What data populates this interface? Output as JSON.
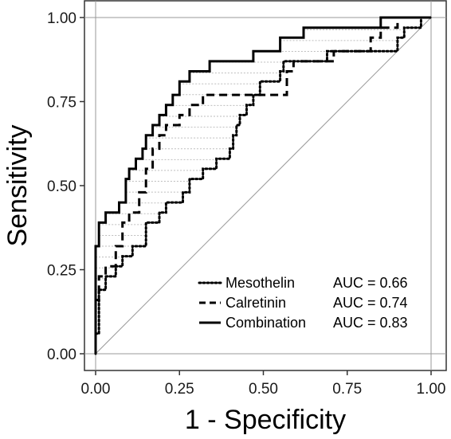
{
  "chart_data": {
    "type": "line",
    "title": "",
    "xlabel": "1 - Specificity",
    "ylabel": "Sensitivity",
    "xlim": [
      0,
      1
    ],
    "ylim": [
      0,
      1
    ],
    "x_ticks": [
      "0.00",
      "0.25",
      "0.50",
      "0.75",
      "1.00"
    ],
    "y_ticks": [
      "0.00",
      "0.25",
      "0.50",
      "0.75",
      "1.00"
    ],
    "x_tick_values": [
      0,
      0.25,
      0.5,
      0.75,
      1
    ],
    "y_tick_values": [
      0,
      0.25,
      0.5,
      0.75,
      1
    ],
    "reference_line": {
      "x": [
        0,
        1
      ],
      "y": [
        0,
        1
      ]
    },
    "legend_position": "bottom-right",
    "series": [
      {
        "name": "Mesothelin",
        "auc_label": "AUC = 0.66",
        "style": "dotted",
        "x": [
          0,
          0,
          0.01,
          0.01,
          0.03,
          0.03,
          0.06,
          0.06,
          0.08,
          0.08,
          0.11,
          0.11,
          0.15,
          0.15,
          0.19,
          0.19,
          0.21,
          0.21,
          0.26,
          0.26,
          0.28,
          0.28,
          0.32,
          0.32,
          0.36,
          0.36,
          0.4,
          0.4,
          0.41,
          0.41,
          0.42,
          0.42,
          0.43,
          0.43,
          0.45,
          0.45,
          0.47,
          0.47,
          0.49,
          0.49,
          0.55,
          0.55,
          0.56,
          0.56,
          0.69,
          0.69,
          0.7,
          0.7,
          0.9,
          0.9,
          0.92,
          0.92,
          0.94,
          0.94,
          0.97,
          0.97,
          1
        ],
        "y": [
          0,
          0.06,
          0.06,
          0.19,
          0.19,
          0.23,
          0.23,
          0.26,
          0.26,
          0.29,
          0.29,
          0.32,
          0.32,
          0.39,
          0.39,
          0.42,
          0.42,
          0.45,
          0.45,
          0.48,
          0.48,
          0.52,
          0.52,
          0.55,
          0.55,
          0.58,
          0.58,
          0.61,
          0.61,
          0.65,
          0.65,
          0.68,
          0.68,
          0.71,
          0.71,
          0.74,
          0.74,
          0.77,
          0.77,
          0.81,
          0.81,
          0.84,
          0.84,
          0.87,
          0.87,
          0.9,
          0.9,
          0.9,
          0.9,
          0.94,
          0.94,
          0.97,
          0.97,
          0.97,
          0.97,
          1,
          1
        ]
      },
      {
        "name": "Calretinin",
        "auc_label": "AUC = 0.74",
        "style": "dashed",
        "x": [
          0,
          0,
          0.01,
          0.01,
          0.03,
          0.03,
          0.06,
          0.06,
          0.08,
          0.08,
          0.1,
          0.1,
          0.13,
          0.13,
          0.15,
          0.15,
          0.17,
          0.17,
          0.19,
          0.19,
          0.21,
          0.21,
          0.25,
          0.25,
          0.28,
          0.28,
          0.32,
          0.32,
          0.45,
          0.45,
          0.57,
          0.57,
          0.59,
          0.59,
          0.71,
          0.71,
          0.74,
          0.74,
          0.82,
          0.82,
          0.85,
          0.85,
          0.87,
          0.87,
          0.9,
          0.9,
          1
        ],
        "y": [
          0,
          0.16,
          0.16,
          0.23,
          0.23,
          0.26,
          0.26,
          0.32,
          0.32,
          0.39,
          0.39,
          0.42,
          0.42,
          0.48,
          0.48,
          0.55,
          0.55,
          0.61,
          0.61,
          0.65,
          0.65,
          0.68,
          0.68,
          0.71,
          0.71,
          0.74,
          0.74,
          0.77,
          0.77,
          0.77,
          0.77,
          0.84,
          0.84,
          0.87,
          0.87,
          0.9,
          0.9,
          0.9,
          0.9,
          0.94,
          0.94,
          0.97,
          0.97,
          0.97,
          0.97,
          1,
          1
        ]
      },
      {
        "name": "Combination",
        "auc_label": "AUC = 0.83",
        "style": "solid",
        "x": [
          0,
          0,
          0.01,
          0.01,
          0.03,
          0.03,
          0.07,
          0.07,
          0.09,
          0.09,
          0.1,
          0.1,
          0.12,
          0.12,
          0.14,
          0.14,
          0.15,
          0.15,
          0.17,
          0.17,
          0.19,
          0.19,
          0.21,
          0.21,
          0.23,
          0.23,
          0.25,
          0.25,
          0.28,
          0.28,
          0.32,
          0.32,
          0.34,
          0.34,
          0.4,
          0.4,
          0.47,
          0.47,
          0.55,
          0.55,
          0.62,
          0.62,
          0.85,
          0.85,
          1
        ],
        "y": [
          0,
          0.32,
          0.32,
          0.39,
          0.39,
          0.42,
          0.42,
          0.45,
          0.45,
          0.52,
          0.52,
          0.55,
          0.55,
          0.58,
          0.58,
          0.61,
          0.61,
          0.65,
          0.65,
          0.68,
          0.68,
          0.71,
          0.71,
          0.74,
          0.74,
          0.77,
          0.77,
          0.81,
          0.81,
          0.84,
          0.84,
          0.84,
          0.84,
          0.87,
          0.87,
          0.87,
          0.87,
          0.9,
          0.9,
          0.94,
          0.94,
          0.97,
          0.97,
          1,
          1
        ]
      }
    ]
  }
}
